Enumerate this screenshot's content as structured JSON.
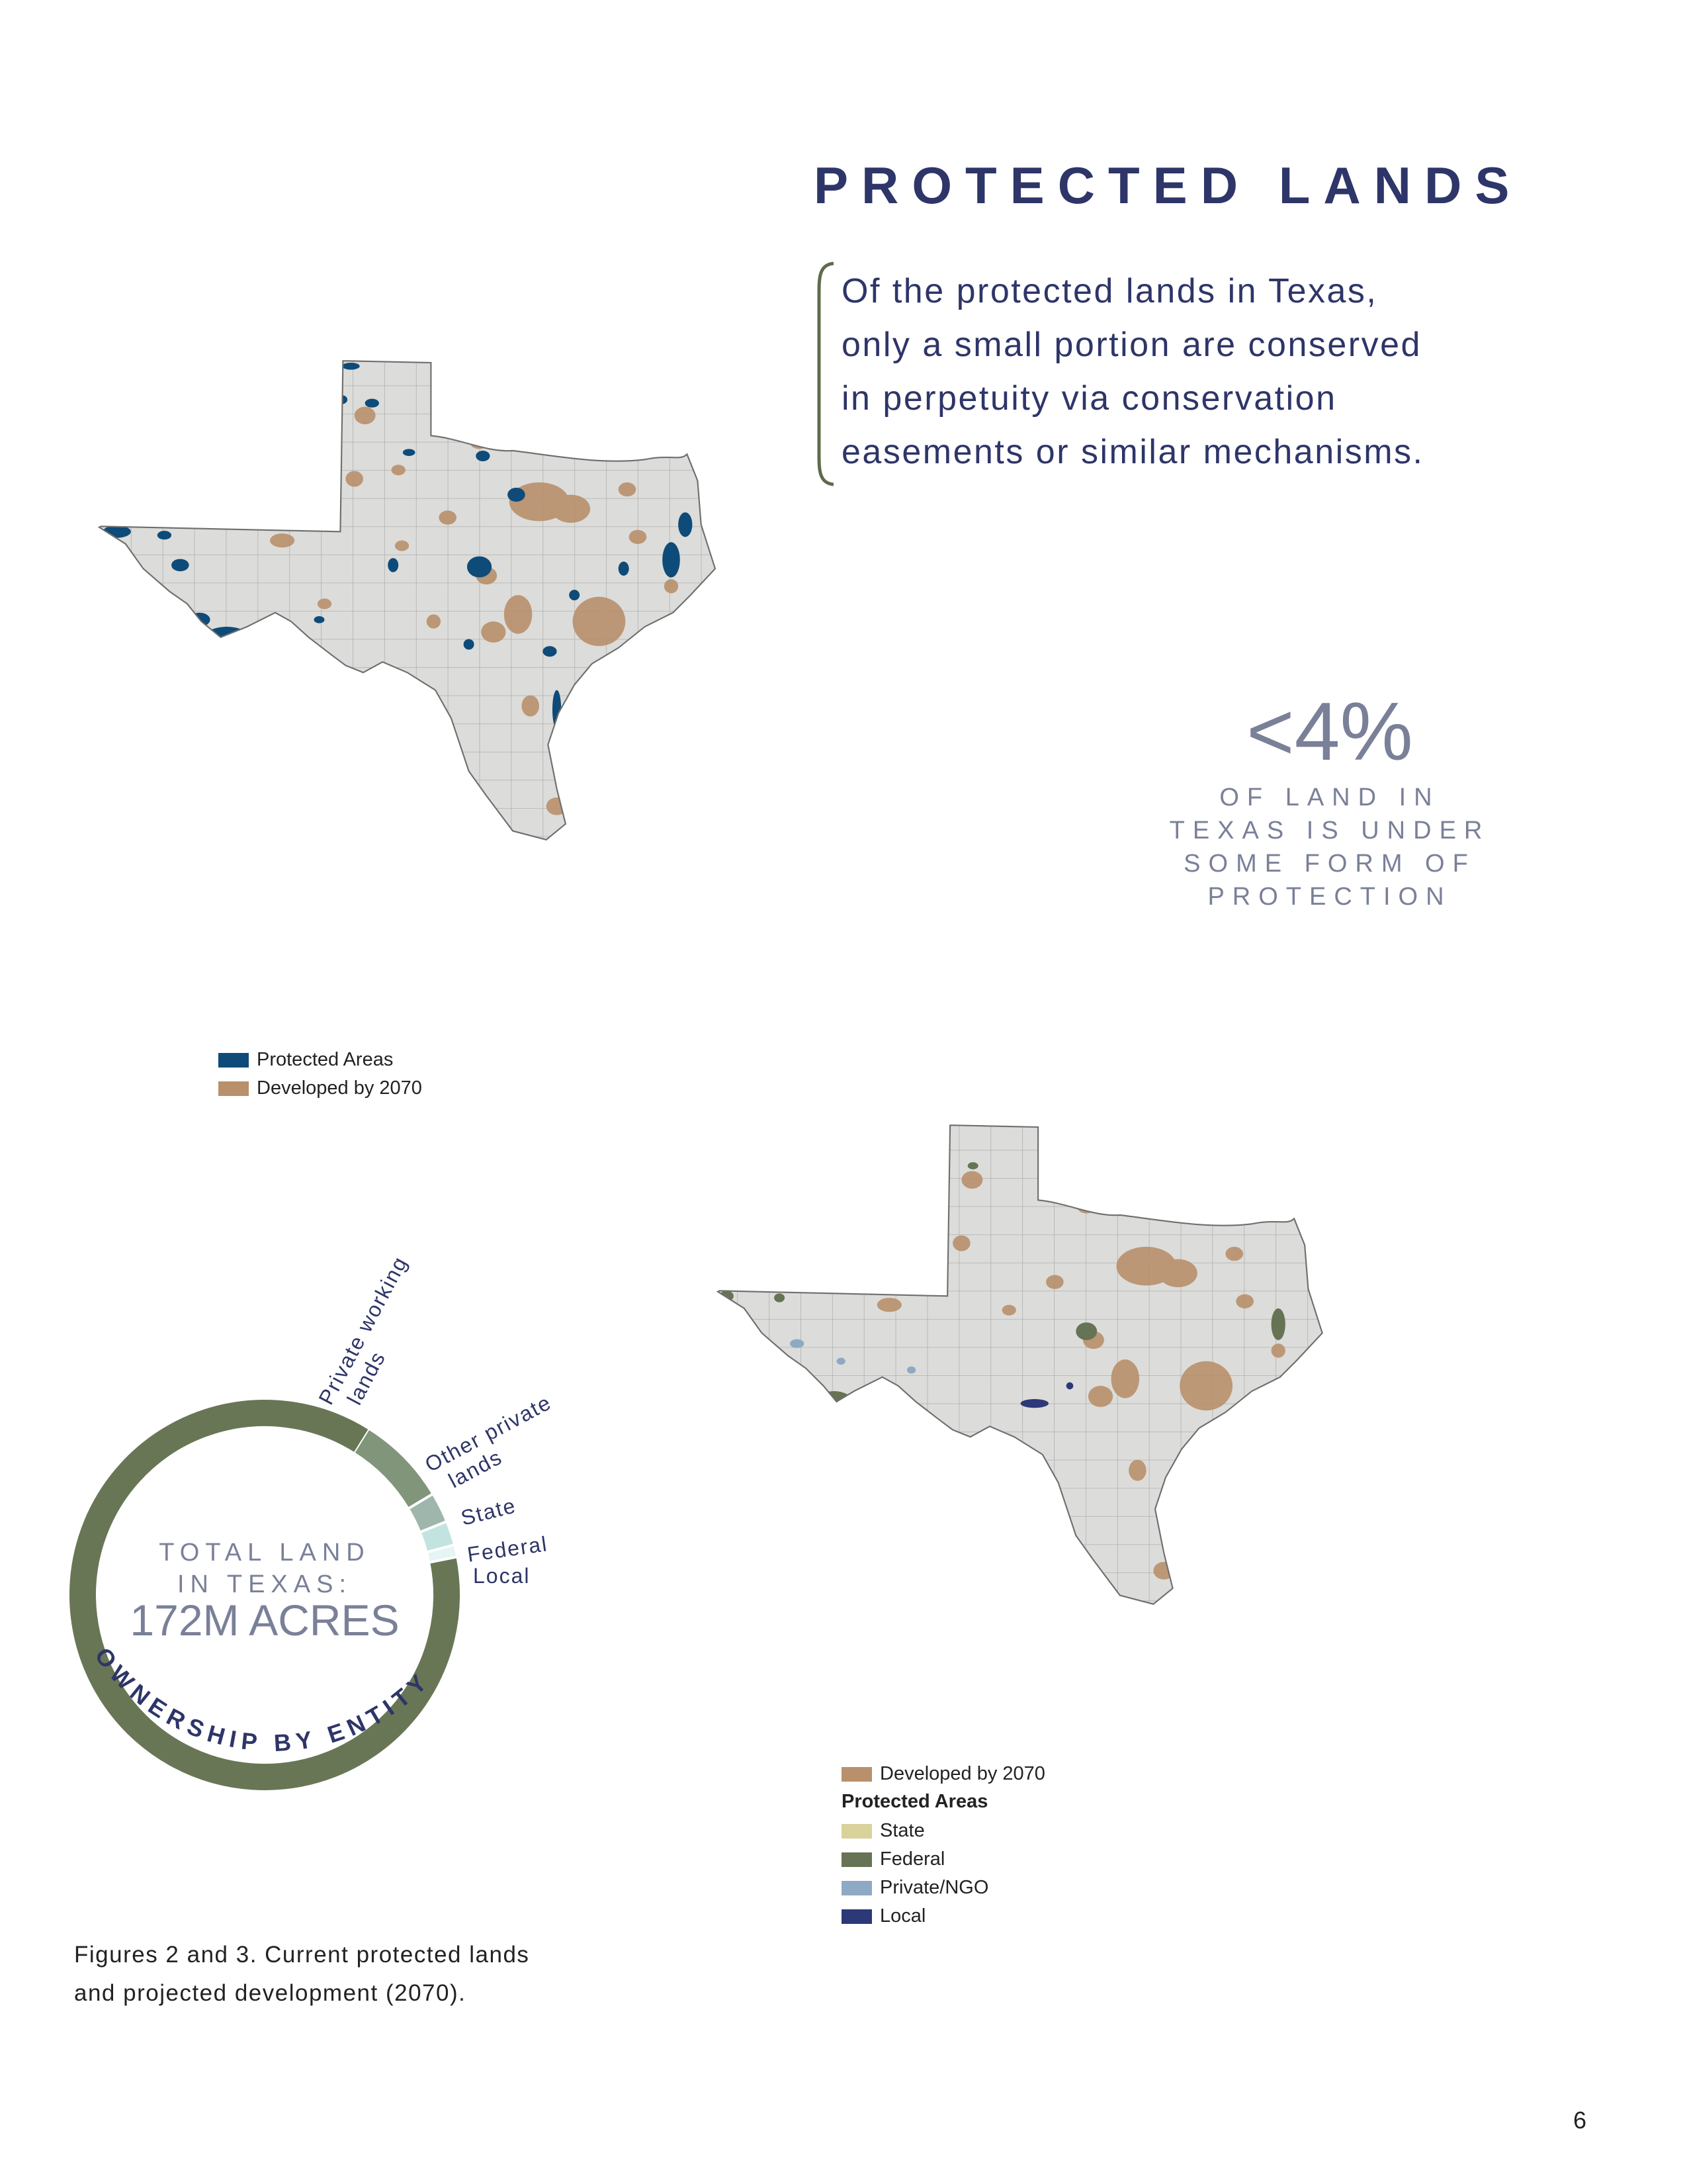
{
  "page": {
    "title": "PROTECTED LANDS",
    "quote_lines": [
      "Of the protected lands in Texas,",
      "only a small portion are conserved",
      "in perpetuity via conservation",
      "easements or similar mechanisms."
    ],
    "stat": {
      "value": "<4%",
      "lines": [
        "OF LAND IN",
        "TEXAS IS UNDER",
        "SOME FORM OF",
        "PROTECTION"
      ]
    },
    "caption_lines": [
      "Figures 2 and 3. Current protected lands",
      "and projected development (2070)."
    ],
    "page_number": "6"
  },
  "map1": {
    "legend": [
      {
        "label": "Protected Areas",
        "color": "#0e4b78"
      },
      {
        "label": "Developed by 2070",
        "color": "#b8906c"
      }
    ]
  },
  "map2": {
    "legend_developed": {
      "label": "Developed by 2070",
      "color": "#b8906c"
    },
    "legend_heading": "Protected Areas",
    "legend": [
      {
        "label": "State",
        "color": "#d9d29a"
      },
      {
        "label": "Federal",
        "color": "#667354"
      },
      {
        "label": "Private/NGO",
        "color": "#8ea9c4"
      },
      {
        "label": "Local",
        "color": "#2c3878"
      }
    ]
  },
  "donut": {
    "center_lines": [
      "TOTAL LAND",
      "IN TEXAS:"
    ],
    "center_value": "172M ACRES",
    "arc_title": "OWNERSHIP BY ENTITY",
    "segments": [
      {
        "label": "Private working lands",
        "label_lines": [
          "Private working",
          "lands"
        ],
        "fraction": 0.87,
        "color": "#687655"
      },
      {
        "label": "Other private lands",
        "label_lines": [
          "Other private",
          "lands"
        ],
        "fraction": 0.075,
        "color": "#80957a"
      },
      {
        "label": "State",
        "label_lines": [
          "State"
        ],
        "fraction": 0.025,
        "color": "#9eb6ab"
      },
      {
        "label": "Federal",
        "label_lines": [
          "Federal"
        ],
        "fraction": 0.02,
        "color": "#c3e3e0"
      },
      {
        "label": "Local",
        "label_lines": [
          "Local"
        ],
        "fraction": 0.01,
        "color": "#e4f5f3"
      }
    ]
  }
}
